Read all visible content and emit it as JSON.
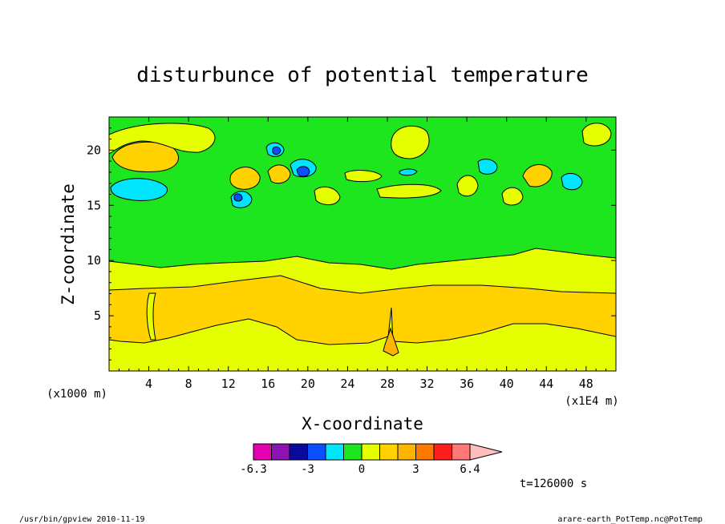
{
  "chart_data": {
    "type": "contour",
    "title": "disturbunce of potential temperature",
    "xlabel": "X-coordinate",
    "ylabel": "Z-coordinate",
    "x_units": "(x1E4 m)",
    "y_units": "(x1000 m)",
    "x_ticks": [
      "4",
      "8",
      "12",
      "16",
      "20",
      "24",
      "28",
      "32",
      "36",
      "40",
      "44",
      "48"
    ],
    "x_tick_values": [
      4,
      8,
      12,
      16,
      20,
      24,
      28,
      32,
      36,
      40,
      44,
      48
    ],
    "y_ticks": [
      "5",
      "10",
      "15",
      "20"
    ],
    "y_tick_values": [
      5,
      10,
      15,
      20
    ],
    "xlim": [
      0,
      51
    ],
    "ylim": [
      0,
      23
    ],
    "colorbar": {
      "tick_labels": [
        "-6.3",
        "-3",
        "0",
        "3",
        "6.4"
      ],
      "colors": [
        "#e600b4",
        "#8c14b4",
        "#0a0a9a",
        "#0a50ff",
        "#00e6ff",
        "#1ee61e",
        "#e6ff00",
        "#ffd200",
        "#ffb400",
        "#ff7800",
        "#ff1e1e",
        "#ff7878",
        "#ffbebe"
      ]
    },
    "time_label": "t=126000 s"
  },
  "footer": {
    "left": "/usr/bin/gpview   2010-11-19",
    "right": "arare-earth_PotTemp.nc@PotTemp"
  }
}
